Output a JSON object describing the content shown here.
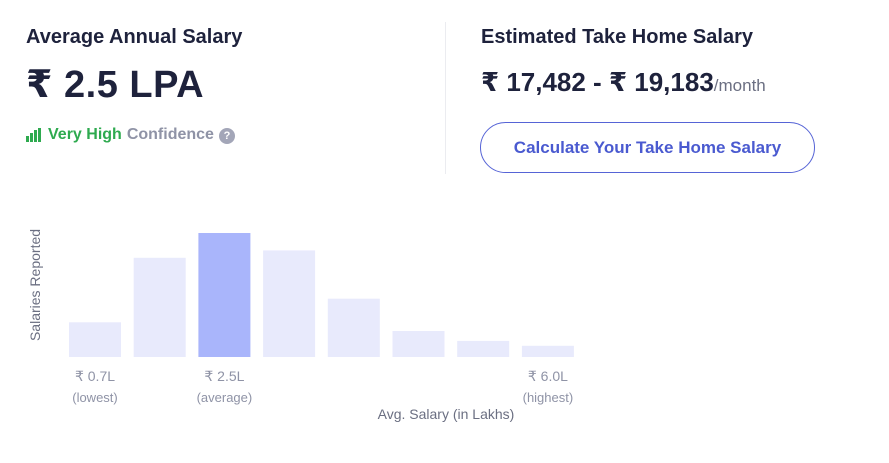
{
  "average": {
    "title": "Average Annual Salary",
    "value": "₹ 2.5 LPA",
    "confidence_level": "Very High",
    "confidence_label": "Confidence",
    "help_glyph": "?",
    "colors": {
      "confidence": "#2eaa4f"
    }
  },
  "takehome": {
    "title": "Estimated Take Home Salary",
    "value": "₹ 17,482 - ₹ 19,183",
    "unit": "/month",
    "button_label": "Calculate Your Take Home Salary"
  },
  "chart_data": {
    "type": "bar",
    "ylabel": "Salaries Reported",
    "xlabel": "Avg. Salary (in Lakhs)",
    "values": [
      28,
      80,
      100,
      86,
      47,
      21,
      13,
      9
    ],
    "highlight_index": 2,
    "colors": {
      "bar": "#e8eafc",
      "highlight": "#a9b5fb"
    },
    "tick_labels": [
      {
        "index": 0,
        "value": "₹ 0.7L",
        "sub": "(lowest)"
      },
      {
        "index": 2,
        "value": "₹ 2.5L",
        "sub": "(average)"
      },
      {
        "index": 7,
        "value": "₹ 6.0L",
        "sub": "(highest)"
      }
    ]
  }
}
